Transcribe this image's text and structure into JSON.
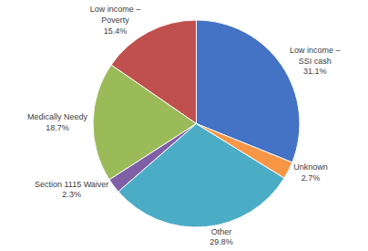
{
  "chart_data": {
    "type": "pie",
    "categories": [
      "Low income –\nSSI cash",
      "Low income –\nPoverty",
      "Medically Needy",
      "Section 1115 Waiver",
      "Other",
      "Unknown"
    ],
    "values": [
      31.1,
      15.4,
      18.7,
      2.3,
      29.8,
      2.7
    ],
    "value_labels": [
      "31.1%",
      "15.4%",
      "18.7%",
      "2.3%",
      "29.8%",
      "2.7%"
    ],
    "colors": [
      "#4472C4",
      "#C0504D",
      "#9BBB59",
      "#7F5FA6",
      "#4BACC6",
      "#F79646"
    ],
    "data_labels": true
  }
}
